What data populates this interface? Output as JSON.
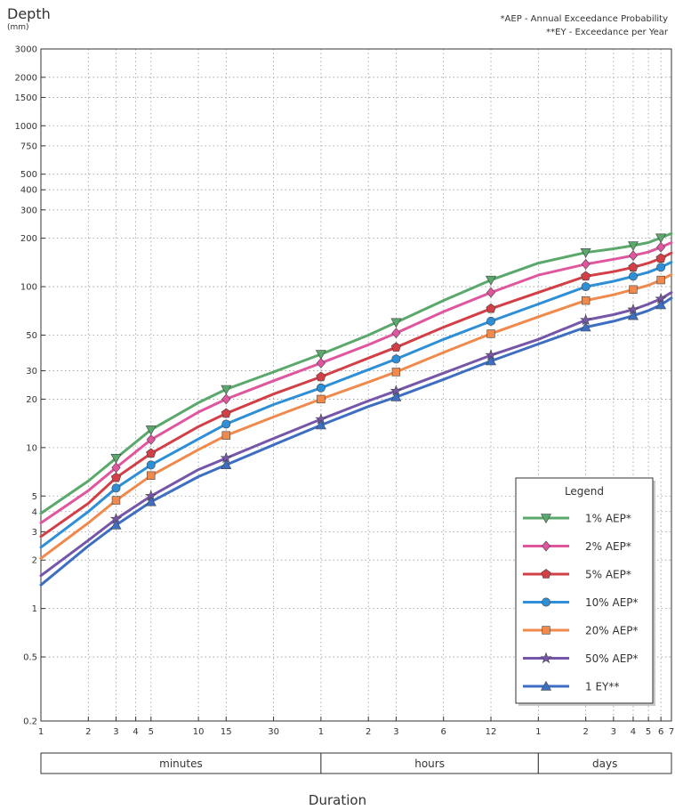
{
  "notes": [
    "*AEP - Annual Exceedance Probability",
    "**EY - Exceedance per Year"
  ],
  "chart_data": {
    "type": "line",
    "title": "",
    "ylabel": "Depth",
    "yunit": "(mm)",
    "xlabel": "Duration",
    "yscale": "log",
    "xscale": "log",
    "ylim": [
      0.2,
      3000
    ],
    "yticks": [
      0.2,
      0.5,
      1,
      2,
      3,
      4,
      5,
      10,
      20,
      30,
      50,
      100,
      200,
      300,
      400,
      500,
      750,
      1000,
      1500,
      2000,
      3000
    ],
    "xlim_minutes": [
      1,
      10080
    ],
    "xticks": [
      {
        "label": "1",
        "minutes": 1
      },
      {
        "label": "2",
        "minutes": 2
      },
      {
        "label": "3",
        "minutes": 3
      },
      {
        "label": "4",
        "minutes": 4
      },
      {
        "label": "5",
        "minutes": 5
      },
      {
        "label": "10",
        "minutes": 10
      },
      {
        "label": "15",
        "minutes": 15
      },
      {
        "label": "30",
        "minutes": 30
      },
      {
        "label": "1",
        "minutes": 60
      },
      {
        "label": "2",
        "minutes": 120
      },
      {
        "label": "3",
        "minutes": 180
      },
      {
        "label": "6",
        "minutes": 360
      },
      {
        "label": "12",
        "minutes": 720
      },
      {
        "label": "1",
        "minutes": 1440
      },
      {
        "label": "2",
        "minutes": 2880
      },
      {
        "label": "3",
        "minutes": 4320
      },
      {
        "label": "4",
        "minutes": 5760
      },
      {
        "label": "5",
        "minutes": 7200
      },
      {
        "label": "6",
        "minutes": 8640
      },
      {
        "label": "7",
        "minutes": 10080
      }
    ],
    "duration_groups": [
      {
        "label": "minutes",
        "from_minutes": 1,
        "to_minutes": 60
      },
      {
        "label": "hours",
        "from_minutes": 60,
        "to_minutes": 1440
      },
      {
        "label": "days",
        "from_minutes": 1440,
        "to_minutes": 10080
      }
    ],
    "grid": true,
    "legend_title": "Legend",
    "legend_position": "bottom-right",
    "x_minutes": [
      1,
      2,
      3,
      5,
      10,
      15,
      30,
      60,
      120,
      180,
      360,
      720,
      1440,
      2880,
      4320,
      5760,
      7200,
      8640,
      10080
    ],
    "series": [
      {
        "name": "1% AEP*",
        "color": "#5aa86b",
        "marker": "triangle-down",
        "values": [
          3.9,
          6.2,
          8.6,
          12.9,
          19,
          23,
          29.5,
          38,
          50,
          60,
          82,
          110,
          140,
          163,
          172,
          180,
          188,
          201,
          214
        ],
        "marker_x": [
          3,
          5,
          15,
          60,
          180,
          720,
          2880,
          5760,
          8640
        ]
      },
      {
        "name": "2% AEP*",
        "color": "#e0569e",
        "marker": "diamond",
        "values": [
          3.4,
          5.4,
          7.5,
          11.2,
          16.6,
          20,
          26,
          33.5,
          43.5,
          51.5,
          70,
          92,
          118,
          138,
          148,
          156,
          164,
          176,
          188
        ],
        "marker_x": [
          3,
          5,
          15,
          60,
          180,
          720,
          2880,
          5760,
          8640
        ]
      },
      {
        "name": "5% AEP*",
        "color": "#d23f46",
        "marker": "pentagon",
        "values": [
          2.8,
          4.5,
          6.5,
          9.2,
          13.5,
          16.3,
          21.5,
          27.5,
          36,
          42,
          56,
          73,
          92,
          116,
          124,
          132,
          140,
          150,
          162
        ],
        "marker_x": [
          3,
          5,
          15,
          60,
          180,
          720,
          2880,
          5760,
          8640
        ]
      },
      {
        "name": "10% AEP*",
        "color": "#2e8fd6",
        "marker": "circle",
        "values": [
          2.4,
          4.0,
          5.6,
          7.8,
          11.3,
          14.0,
          18.5,
          23.5,
          30.5,
          35.5,
          47,
          61,
          78,
          100,
          108,
          116,
          123,
          132,
          142
        ],
        "marker_x": [
          3,
          5,
          15,
          60,
          180,
          720,
          2880,
          5760,
          8640
        ]
      },
      {
        "name": "20% AEP*",
        "color": "#ef8a4c",
        "marker": "square",
        "values": [
          2.05,
          3.4,
          4.7,
          6.7,
          9.7,
          11.9,
          15.5,
          20,
          25.5,
          29.5,
          39,
          51,
          65,
          82,
          89,
          96,
          102,
          110,
          119
        ],
        "marker_x": [
          3,
          5,
          15,
          60,
          180,
          720,
          2880,
          5760,
          8640
        ]
      },
      {
        "name": "50% AEP*",
        "color": "#7656a8",
        "marker": "star",
        "values": [
          1.6,
          2.65,
          3.6,
          5.0,
          7.3,
          8.6,
          11.4,
          15,
          19.5,
          22.5,
          29,
          37.5,
          47,
          62,
          67,
          72,
          78,
          84,
          92
        ],
        "marker_x": [
          3,
          5,
          15,
          60,
          180,
          720,
          2880,
          5760,
          8640
        ]
      },
      {
        "name": "1 EY**",
        "color": "#3d6ec2",
        "marker": "triangle-up",
        "values": [
          1.4,
          2.45,
          3.3,
          4.6,
          6.6,
          7.8,
          10.4,
          13.8,
          18,
          20.6,
          26.5,
          34.5,
          44,
          56,
          61,
          66,
          71,
          77,
          85
        ],
        "marker_x": [
          3,
          5,
          15,
          60,
          180,
          720,
          2880,
          5760,
          8640
        ]
      }
    ]
  }
}
